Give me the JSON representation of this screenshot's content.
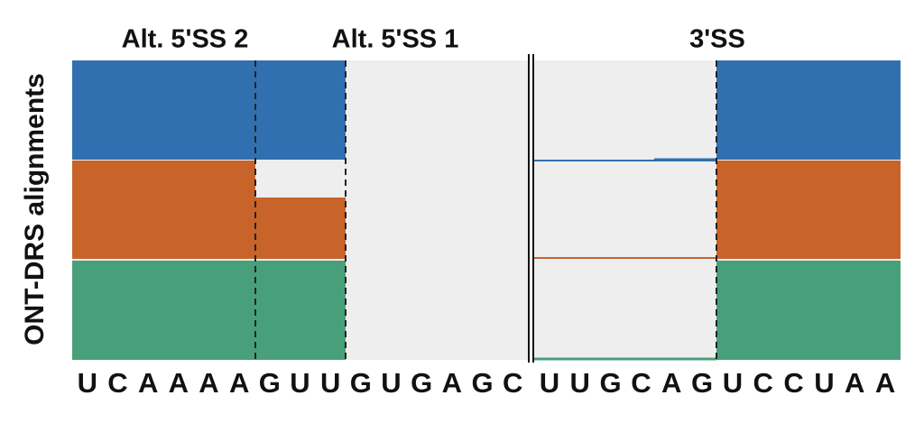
{
  "y_label": "ONT-DRS alignments",
  "headers": [
    "Alt. 5'SS 2",
    "Alt. 5'SS 1",
    "3'SS"
  ],
  "sequence": {
    "left": [
      "U",
      "C",
      "A",
      "A",
      "A",
      "A",
      "G",
      "U",
      "U",
      "G",
      "U",
      "G",
      "A",
      "G",
      "C"
    ],
    "right": [
      "U",
      "U",
      "G",
      "C",
      "A",
      "G",
      "U",
      "C",
      "C",
      "U",
      "A",
      "A"
    ]
  }
}
